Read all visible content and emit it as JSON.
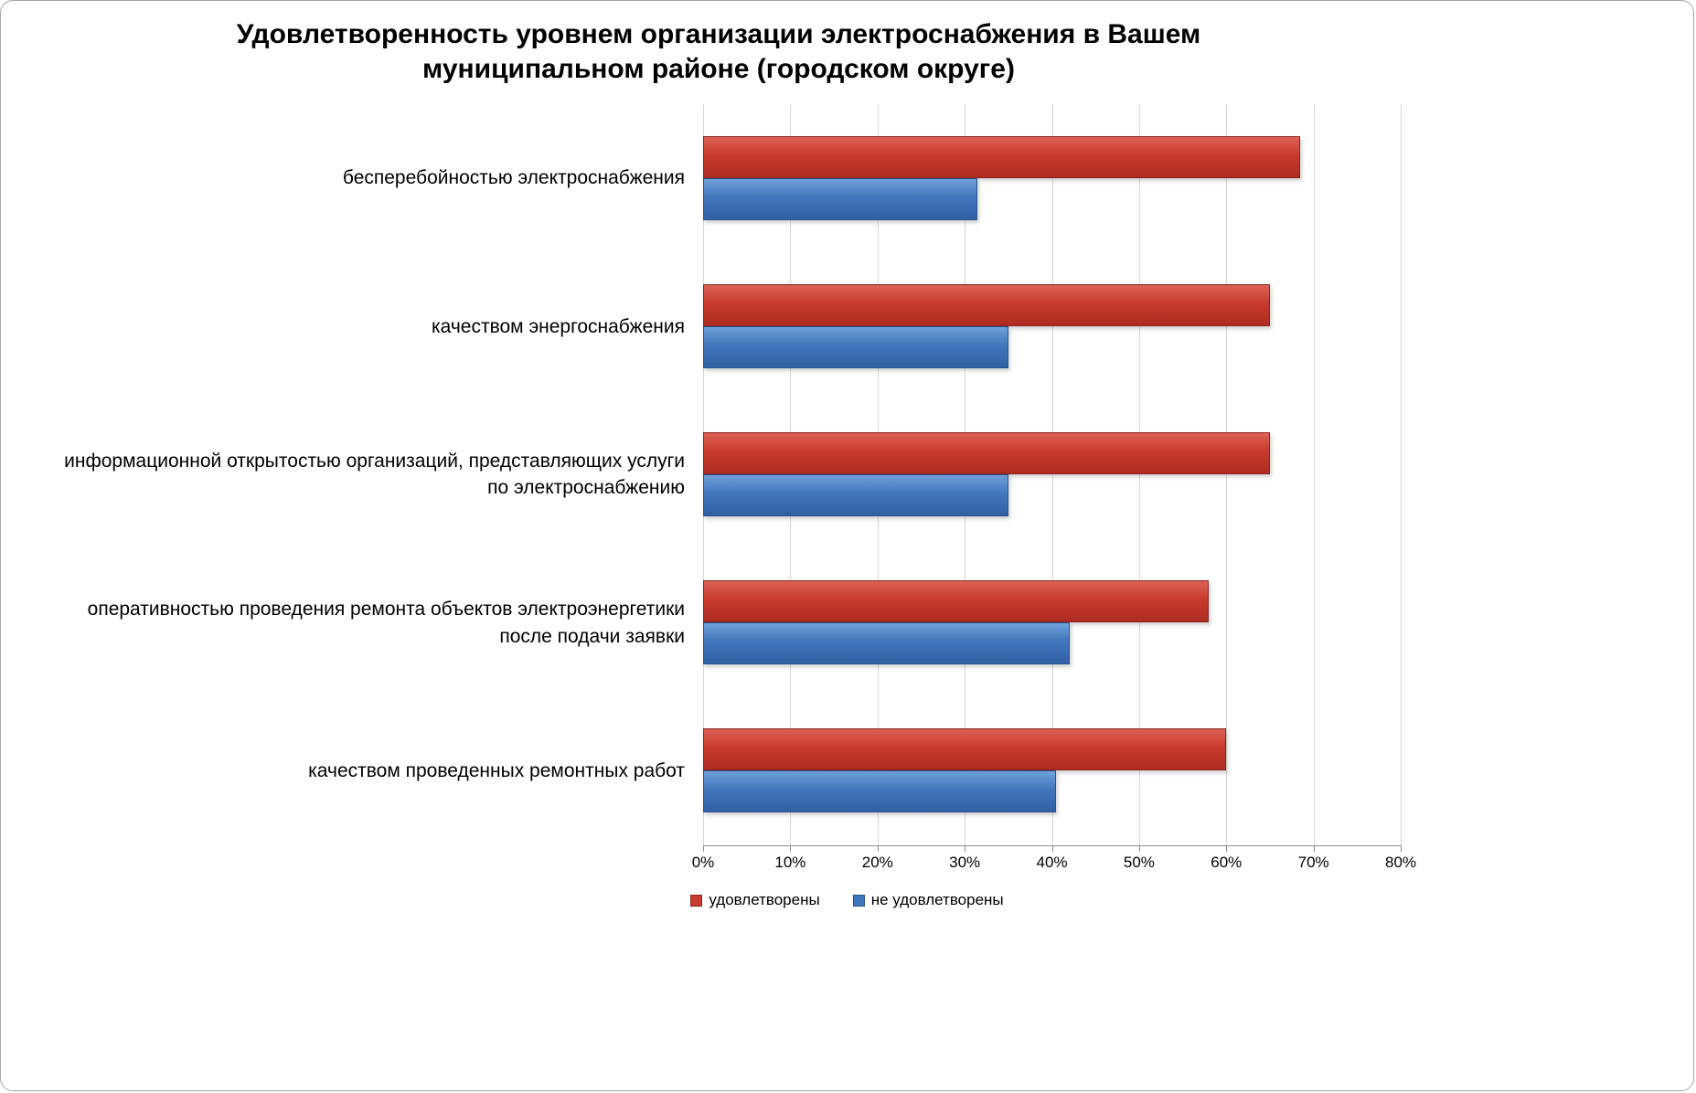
{
  "title": "Удовлетворенность уровнем организации электроснабжения в Вашем муниципальном районе (городском округе)",
  "chart_data": {
    "type": "bar",
    "orientation": "horizontal",
    "title": "Удовлетворенность уровнем организации электроснабжения в Вашем муниципальном районе (городском округе)",
    "categories": [
      "бесперебойностью  электроснабжения",
      "качеством энергоснабжения",
      "информационной открытостью организаций, представляющих услуги\nпо электроснабжению",
      "оперативностью проведения ремонта объектов электроэнергетики\nпосле подачи заявки",
      "качеством проведенных ремонтных работ"
    ],
    "series": [
      {
        "name": "удовлетворены",
        "color": "#C93A2F",
        "values": [
          68.5,
          65,
          65,
          58,
          60
        ]
      },
      {
        "name": "не удовлетворены",
        "color": "#4377BD",
        "values": [
          31.5,
          35,
          35,
          42,
          40.5
        ]
      }
    ],
    "xlim": [
      0,
      80
    ],
    "x_ticks": [
      "0%",
      "10%",
      "20%",
      "30%",
      "40%",
      "50%",
      "60%",
      "70%",
      "80%"
    ],
    "grid": true,
    "legend_position": "bottom",
    "colors": {
      "satisfied": "#C93A2F",
      "not_satisfied": "#4377BD",
      "gridline": "#D6D6D6",
      "axis": "#8E8E8E"
    }
  }
}
